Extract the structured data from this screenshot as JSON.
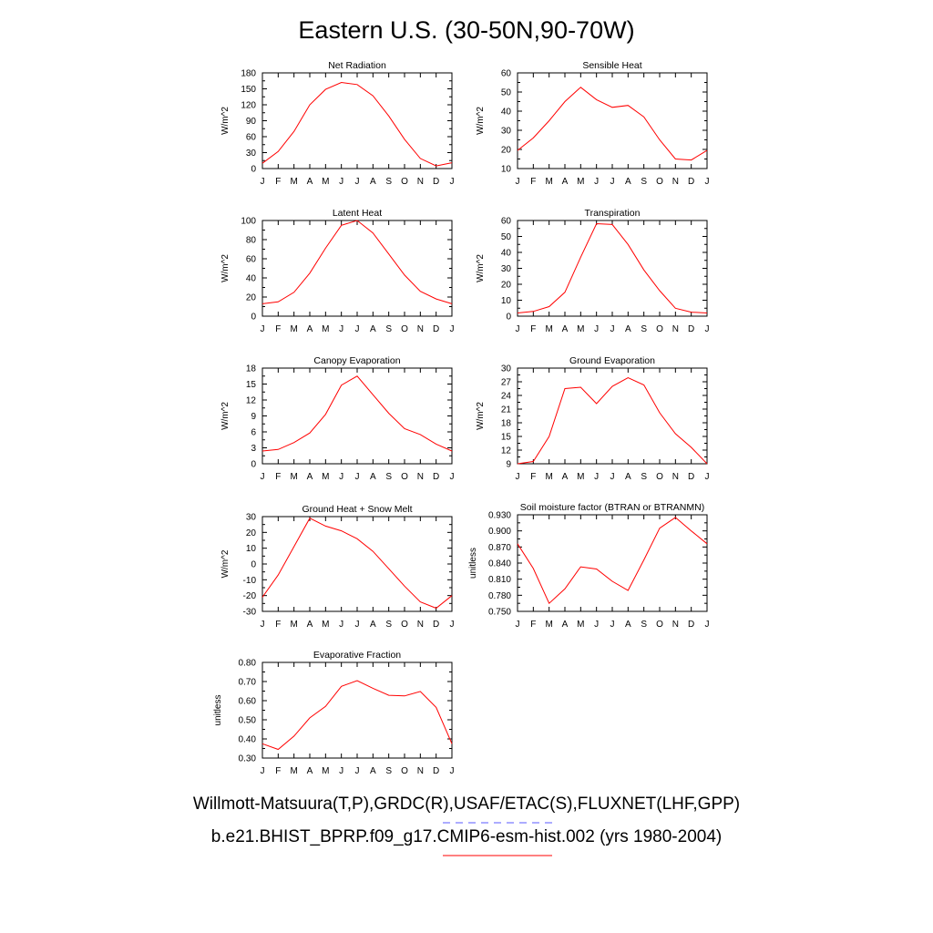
{
  "title": "Eastern U.S. (30-50N,90-70W)",
  "legend": [
    {
      "label": "Willmott-Matsuura(T,P),GRDC(R),USAF/ETAC(S),FLUXNET(LHF,GPP)",
      "color": "#5a5aff",
      "style": "dashed"
    },
    {
      "label": "b.e21.BHIST_BPRP.f09_g17.CMIP6-esm-hist.002 (yrs 1980-2004)",
      "color": "#ff0000",
      "style": "solid"
    }
  ],
  "chart_data": [
    {
      "type": "line",
      "title": "Net Radiation",
      "ylabel": "W/m^2",
      "x": [
        "J",
        "F",
        "M",
        "A",
        "M",
        "J",
        "J",
        "A",
        "S",
        "O",
        "N",
        "D",
        "J"
      ],
      "ylim": [
        0,
        180
      ],
      "yticks": [
        "0",
        "30",
        "60",
        "90",
        "120",
        "150",
        "180"
      ],
      "series": [
        {
          "values": [
            10,
            32,
            70,
            120,
            149,
            162,
            158,
            137,
            99,
            55,
            19,
            5,
            11
          ],
          "color": "#ff0000"
        }
      ]
    },
    {
      "type": "line",
      "title": "Sensible Heat",
      "ylabel": "W/m^2",
      "x": [
        "J",
        "F",
        "M",
        "A",
        "M",
        "J",
        "J",
        "A",
        "S",
        "O",
        "N",
        "D",
        "J"
      ],
      "ylim": [
        10,
        60
      ],
      "yticks": [
        "10",
        "20",
        "30",
        "40",
        "50",
        "60"
      ],
      "series": [
        {
          "values": [
            19.5,
            26,
            35,
            45,
            52.5,
            46,
            42,
            43,
            37,
            25,
            15,
            14.5,
            19.5
          ],
          "color": "#ff0000"
        }
      ]
    },
    {
      "type": "line",
      "title": "Latent Heat",
      "ylabel": "W/m^2",
      "x": [
        "J",
        "F",
        "M",
        "A",
        "M",
        "J",
        "J",
        "A",
        "S",
        "O",
        "N",
        "D",
        "J"
      ],
      "ylim": [
        0,
        100
      ],
      "yticks": [
        "0",
        "20",
        "40",
        "60",
        "80",
        "100"
      ],
      "series": [
        {
          "values": [
            13,
            15,
            25,
            45,
            71,
            95,
            100,
            87,
            65,
            43,
            26,
            18,
            13
          ],
          "color": "#ff0000"
        }
      ]
    },
    {
      "type": "line",
      "title": "Transpiration",
      "ylabel": "W/m^2",
      "x": [
        "J",
        "F",
        "M",
        "A",
        "M",
        "J",
        "J",
        "A",
        "S",
        "O",
        "N",
        "D",
        "J"
      ],
      "ylim": [
        0,
        60
      ],
      "yticks": [
        "0",
        "10",
        "20",
        "30",
        "40",
        "50",
        "60"
      ],
      "series": [
        {
          "values": [
            2,
            3,
            6,
            15,
            37,
            58,
            57.5,
            45,
            29,
            16,
            5,
            2.5,
            2
          ],
          "color": "#ff0000"
        }
      ]
    },
    {
      "type": "line",
      "title": "Canopy Evaporation",
      "ylabel": "W/m^2",
      "x": [
        "J",
        "F",
        "M",
        "A",
        "M",
        "J",
        "J",
        "A",
        "S",
        "O",
        "N",
        "D",
        "J"
      ],
      "ylim": [
        0,
        18
      ],
      "yticks": [
        "0",
        "3",
        "6",
        "9",
        "12",
        "15",
        "18"
      ],
      "series": [
        {
          "values": [
            2.4,
            2.7,
            4,
            5.8,
            9.3,
            14.8,
            16.5,
            13,
            9.5,
            6.6,
            5.5,
            3.7,
            2.4
          ],
          "color": "#ff0000"
        }
      ]
    },
    {
      "type": "line",
      "title": "Ground Evaporation",
      "ylabel": "W/m^2",
      "x": [
        "J",
        "F",
        "M",
        "A",
        "M",
        "J",
        "J",
        "A",
        "S",
        "O",
        "N",
        "D",
        "J"
      ],
      "ylim": [
        9,
        30
      ],
      "yticks": [
        "9",
        "12",
        "15",
        "18",
        "21",
        "24",
        "27",
        "30"
      ],
      "series": [
        {
          "values": [
            9,
            9.5,
            15,
            25.5,
            25.8,
            22.2,
            26,
            27.9,
            26.3,
            20.2,
            15.6,
            12.6,
            9
          ],
          "color": "#ff0000"
        }
      ]
    },
    {
      "type": "line",
      "title": "Ground Heat + Snow Melt",
      "ylabel": "W/m^2",
      "x": [
        "J",
        "F",
        "M",
        "A",
        "M",
        "J",
        "J",
        "A",
        "S",
        "O",
        "N",
        "D",
        "J"
      ],
      "ylim": [
        -30,
        30
      ],
      "yticks": [
        "-30",
        "-20",
        "-10",
        "0",
        "10",
        "20",
        "30"
      ],
      "series": [
        {
          "values": [
            -21,
            -7,
            11,
            29,
            24,
            21,
            16,
            8,
            -3,
            -14,
            -24,
            -28,
            -20
          ],
          "color": "#ff0000"
        }
      ]
    },
    {
      "type": "line",
      "title": "Soil moisture factor (BTRAN or BTRANMN)",
      "ylabel": "unitless",
      "x": [
        "J",
        "F",
        "M",
        "A",
        "M",
        "J",
        "J",
        "A",
        "S",
        "O",
        "N",
        "D",
        "J"
      ],
      "ylim": [
        0.75,
        0.93
      ],
      "yticks": [
        "0.750",
        "0.780",
        "0.810",
        "0.840",
        "0.870",
        "0.900",
        "0.930"
      ],
      "series": [
        {
          "values": [
            0.876,
            0.83,
            0.765,
            0.792,
            0.833,
            0.829,
            0.806,
            0.789,
            0.846,
            0.905,
            0.925,
            0.9,
            0.876
          ],
          "color": "#ff0000"
        }
      ]
    },
    {
      "type": "line",
      "title": "Evaporative Fraction",
      "ylabel": "unitless",
      "x": [
        "J",
        "F",
        "M",
        "A",
        "M",
        "J",
        "J",
        "A",
        "S",
        "O",
        "N",
        "D",
        "J"
      ],
      "ylim": [
        0.3,
        0.8
      ],
      "yticks": [
        "0.30",
        "0.40",
        "0.50",
        "0.60",
        "0.70",
        "0.80"
      ],
      "series": [
        {
          "values": [
            0.375,
            0.345,
            0.415,
            0.51,
            0.57,
            0.675,
            0.705,
            0.665,
            0.628,
            0.625,
            0.648,
            0.565,
            0.375
          ],
          "color": "#ff0000"
        }
      ]
    }
  ]
}
